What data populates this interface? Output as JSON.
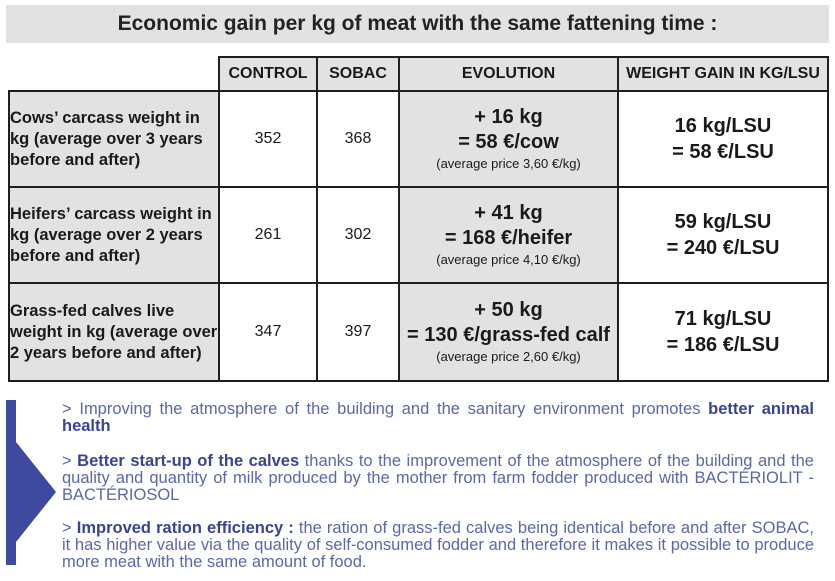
{
  "title": "Economic gain per kg of meat with the same fattening time :",
  "table": {
    "headers": [
      "CONTROL",
      "SOBAC",
      "EVOLUTION",
      "WEIGHT GAIN IN KG/LSU"
    ],
    "rows": [
      {
        "label": "Cows’ carcass weight in kg (average over 3 years before and after)",
        "control": "352",
        "sobac": "368",
        "evolution": [
          "+ 16 kg",
          "= 58 €/cow",
          "(average price 3,60 €/kg)"
        ],
        "gain": [
          "16 kg/LSU",
          "= 58 €/LSU"
        ]
      },
      {
        "label": "Heifers’ carcass weight in kg (average over 2 years before and after)",
        "control": "261",
        "sobac": "302",
        "evolution": [
          "+ 41 kg",
          "=  168 €/heifer",
          "(average price 4,10 €/kg)"
        ],
        "gain": [
          "59 kg/LSU",
          "= 240 €/LSU"
        ]
      },
      {
        "label": "Grass-fed calves live weight in kg (average over 2 years before and after)",
        "control": "347",
        "sobac": "397",
        "evolution": [
          "+ 50 kg",
          "= 130 €/grass-fed calf",
          "(average price 2,60 €/kg)"
        ],
        "gain": [
          "71 kg/LSU",
          "= 186 €/LSU"
        ]
      }
    ]
  },
  "bullets": [
    {
      "prefix": "> Improving the atmosphere of the building and the sanitary environment promotes ",
      "bold": "better animal health",
      "suffix": ""
    },
    {
      "prefix": ">  ",
      "bold": "Better start-up of the calves",
      "suffix": " thanks to the improvement of the atmosphere of the building and the quality and quantity of milk produced by the mother from farm fodder produced with BACTÉRIOLIT - BACTÉRIOSOL"
    },
    {
      "prefix": "> ",
      "bold": "Improved ration efficiency :",
      "suffix": " the ration of grass-fed calves being identical before and after SOBAC, it has higher value via the quality of self-consumed fodder and therefore it makes it possible to produce more meat with the same amount of food."
    }
  ],
  "colors": {
    "accent_blue": "#3d4a9e",
    "text_blue": "#5a68a8",
    "header_gray": "#e2e2e2"
  }
}
